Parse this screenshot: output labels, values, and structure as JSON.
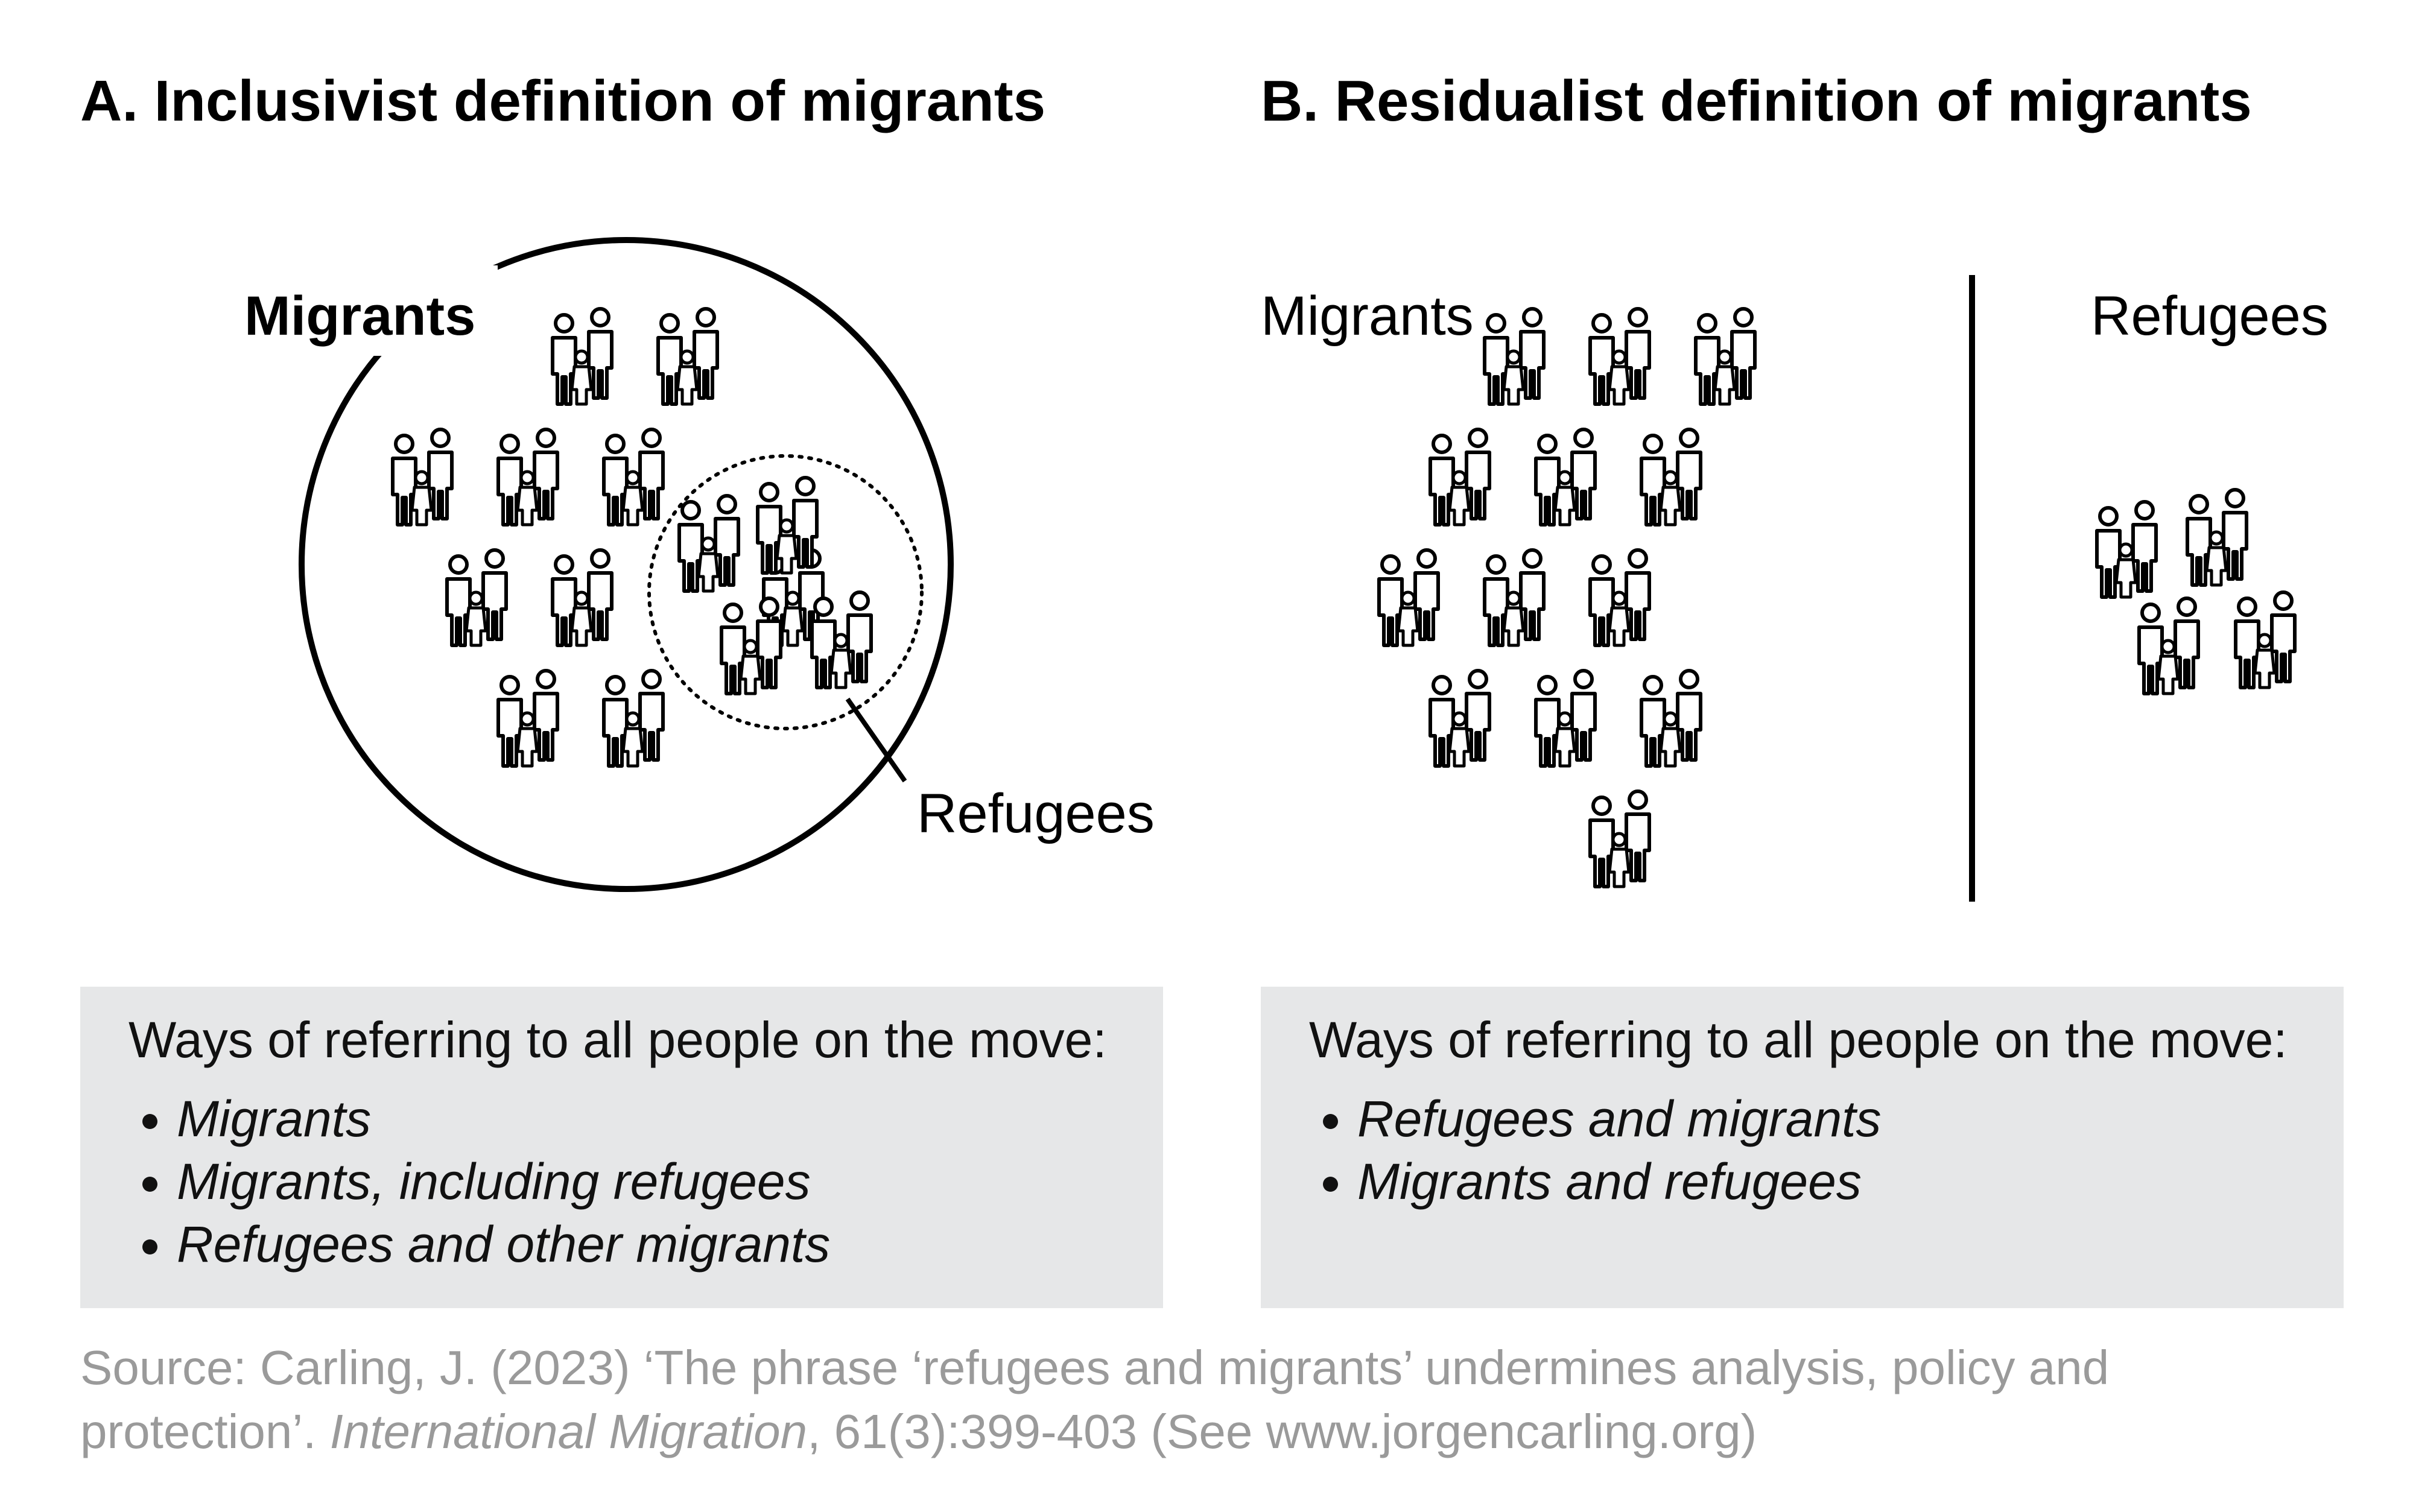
{
  "panels": [
    {
      "title": "A. Inclusivist definition of migrants",
      "migrants_label": "Migrants",
      "refugees_label": "Refugees",
      "box": {
        "heading": "Ways of referring to all people on the move:",
        "items": [
          "Migrants",
          "Migrants, including refugees",
          "Refugees and other migrants"
        ]
      }
    },
    {
      "title": "B. Residualist definition of migrants",
      "migrants_label": "Migrants",
      "refugees_label": "Refugees",
      "box": {
        "heading": "Ways of referring to all people on the move:",
        "items": [
          "Refugees and migrants",
          "Migrants and refugees"
        ]
      }
    }
  ],
  "source": {
    "before": "Source: Carling, J. (2023) ‘The phrase ‘refugees and migrants’ undermines analysis, policy and protection’. ",
    "journal": "International Migration",
    "after": ", 61(3):399-403 (See www.jorgencarling.org)"
  }
}
